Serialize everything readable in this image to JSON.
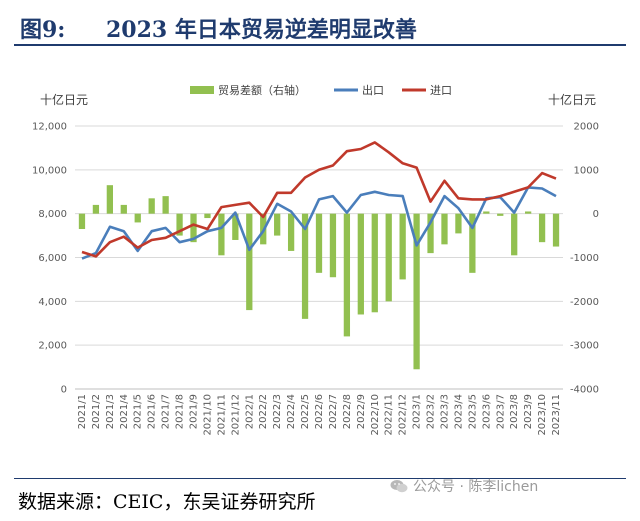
{
  "header": {
    "fig_label": "图9:",
    "title": "2023 年日本贸易逆差明显改善"
  },
  "footer": {
    "source": "数据来源：CEIC，东吴证券研究所",
    "watermark": "公众号 · 陈李lichen"
  },
  "chart_data": {
    "type": "bar+line",
    "left_axis_unit": "十亿日元",
    "right_axis_unit": "十亿日元",
    "left_axis": {
      "min": 0,
      "max": 12000,
      "ticks": [
        "0",
        "2,000",
        "4,000",
        "6,000",
        "8,000",
        "10,000",
        "12,000"
      ]
    },
    "right_axis": {
      "min": -4000,
      "max": 2000,
      "ticks": [
        "-4000",
        "-3000",
        "-2000",
        "-1000",
        "0",
        "1000",
        "2000"
      ]
    },
    "categories": [
      "2021/1",
      "2021/2",
      "2021/3",
      "2021/4",
      "2021/5",
      "2021/6",
      "2021/7",
      "2021/8",
      "2021/9",
      "2021/10",
      "2021/11",
      "2021/12",
      "2022/1",
      "2022/2",
      "2022/3",
      "2022/4",
      "2022/5",
      "2022/6",
      "2022/7",
      "2022/8",
      "2022/9",
      "2022/10",
      "2022/11",
      "2022/12",
      "2023/1",
      "2023/2",
      "2023/3",
      "2023/4",
      "2023/5",
      "2023/6",
      "2023/7",
      "2023/8",
      "2023/9",
      "2023/10",
      "2023/11"
    ],
    "legend": [
      {
        "name": "贸易差额（右轴）",
        "color": "#92c050",
        "kind": "bar"
      },
      {
        "name": "出口",
        "color": "#4a7ebb",
        "kind": "line"
      },
      {
        "name": "进口",
        "color": "#c0392b",
        "kind": "line"
      }
    ],
    "series": [
      {
        "name": "贸易差额（右轴）",
        "axis": "right",
        "values": [
          -350,
          200,
          650,
          200,
          -200,
          350,
          400,
          -500,
          -650,
          -100,
          -950,
          -600,
          -2200,
          -700,
          -500,
          -850,
          -2400,
          -1350,
          -1450,
          -2800,
          -2300,
          -2250,
          -2000,
          -1500,
          -3550,
          -900,
          -700,
          -450,
          -1350,
          50,
          -50,
          -950,
          50,
          -650,
          -750
        ]
      },
      {
        "name": "出口",
        "axis": "left",
        "values": [
          5950,
          6200,
          7400,
          7200,
          6300,
          7200,
          7350,
          6700,
          6850,
          7200,
          7350,
          8050,
          6350,
          7200,
          8450,
          8100,
          7300,
          8650,
          8800,
          8050,
          8850,
          9000,
          8850,
          8800,
          6550,
          7600,
          8800,
          8250,
          7350,
          8700,
          8750,
          8050,
          9200,
          9150,
          8800
        ]
      },
      {
        "name": "进口",
        "axis": "left",
        "values": [
          6250,
          6050,
          6700,
          6950,
          6450,
          6800,
          6900,
          7200,
          7500,
          7300,
          8300,
          8400,
          8500,
          7850,
          8950,
          8950,
          9650,
          10000,
          10200,
          10850,
          10950,
          11250,
          10800,
          10300,
          10100,
          8550,
          9500,
          8700,
          8650,
          8650,
          8800,
          9000,
          9200,
          9850,
          9600
        ]
      }
    ]
  }
}
